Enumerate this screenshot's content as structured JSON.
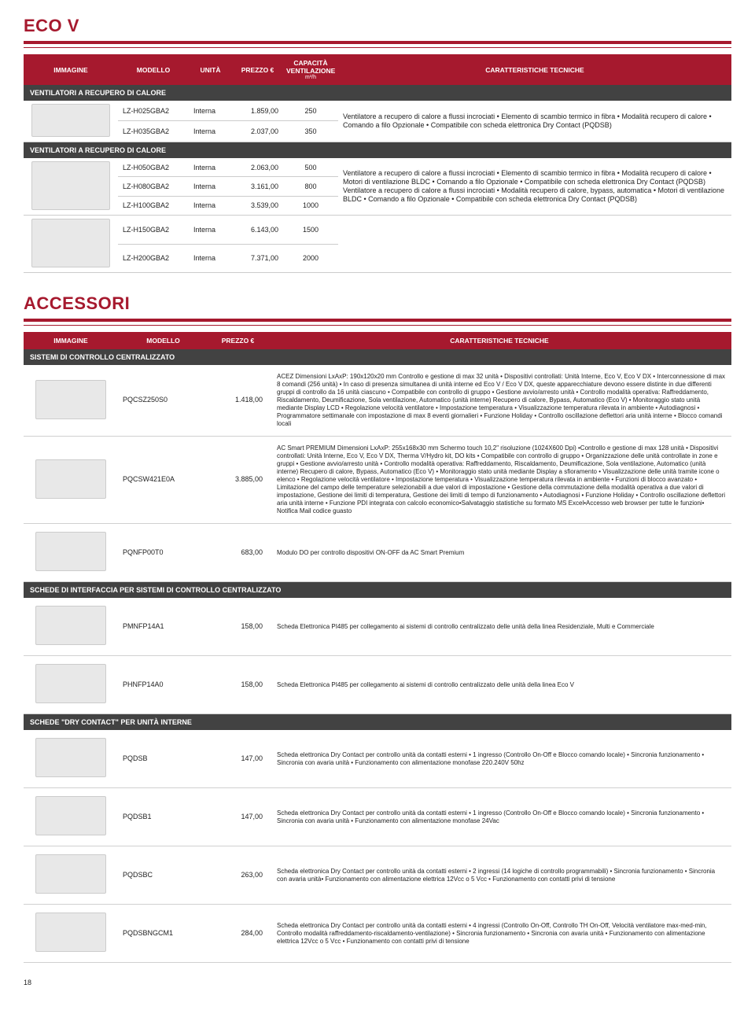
{
  "colors": {
    "brand": "#a6192e",
    "section_bg": "#424242",
    "border": "#cccccc",
    "text": "#222222"
  },
  "page_number": "18",
  "ecov": {
    "title": "ECO V",
    "headers": {
      "immagine": "IMMAGINE",
      "modello": "MODELLO",
      "unita": "UNITÀ",
      "prezzo": "PREZZO €",
      "capacita": "CAPACITÀ VENTILAZIONE",
      "capacita_sub": "m³/h",
      "caratteristiche": "CARATTERISTICHE TECNICHE"
    },
    "section1": {
      "label": "VENTILATORI A RECUPERO DI CALORE",
      "rows": [
        {
          "model": "LZ-H025GBA2",
          "unit": "Interna",
          "price": "1.859,00",
          "cap": "250"
        },
        {
          "model": "LZ-H035GBA2",
          "unit": "Interna",
          "price": "2.037,00",
          "cap": "350"
        }
      ],
      "desc": "Ventilatore a recupero di calore a flussi incrociati • Elemento di scambio termico in fibra • Modalità recupero di calore • Comando a filo Opzionale • Compatibile con scheda elettronica Dry Contact (PQDSB)"
    },
    "section2": {
      "label": "VENTILATORI A RECUPERO DI CALORE",
      "rows": [
        {
          "model": "LZ-H050GBA2",
          "unit": "Interna",
          "price": "2.063,00",
          "cap": "500"
        },
        {
          "model": "LZ-H080GBA2",
          "unit": "Interna",
          "price": "3.161,00",
          "cap": "800"
        },
        {
          "model": "LZ-H100GBA2",
          "unit": "Interna",
          "price": "3.539,00",
          "cap": "1000"
        },
        {
          "model": "LZ-H150GBA2",
          "unit": "Interna",
          "price": "6.143,00",
          "cap": "1500"
        },
        {
          "model": "LZ-H200GBA2",
          "unit": "Interna",
          "price": "7.371,00",
          "cap": "2000"
        }
      ],
      "desc": "Ventilatore a recupero di calore a flussi incrociati • Elemento di scambio termico in fibra • Modalità recupero di calore • Motori di ventilazione BLDC • Comando a filo Opzionale • Compatibile con scheda elettronica Dry Contact (PQDSB) Ventilatore a recupero di calore a flussi incrociati • Modalità recupero di calore, bypass, automatica • Motori di ventilazione BLDC • Comando a filo Opzionale • Compatibile con scheda elettronica Dry Contact (PQDSB)"
    }
  },
  "accessori": {
    "title": "ACCESSORI",
    "headers": {
      "immagine": "IMMAGINE",
      "modello": "MODELLO",
      "prezzo": "PREZZO €",
      "caratteristiche": "CARATTERISTICHE TECNICHE"
    },
    "sections": [
      {
        "label": "SISTEMI DI CONTROLLO CENTRALIZZATO",
        "rows": [
          {
            "model": "PQCSZ250S0",
            "price": "1.418,00",
            "desc": "ACEZ\nDimensioni LxAxP: 190x120x20 mm\nControllo e gestione di max 32 unità • Dispositivi controllati: Unità Interne, Eco V, Eco V DX • Interconnessione di max 8 comandi (256 unità) • In caso di presenza simultanea di unità interne ed Eco V / Eco V DX, queste apparecchiature devono essere distinte in due differenti gruppi di controllo da 16 unità ciascuno • Compatibile con controllo di gruppo • Gestione avvio/arresto unità • Controllo modalità operativa: Raffreddamento, Riscaldamento, Deumificazione, Sola ventilazione, Automatico (unità interne) Recupero di calore, Bypass, Automatico (Eco V) • Monitoraggio stato unità mediante Display LCD • Regolazione velocità ventilatore • Impostazione temperatura • Visualizzazione temperatura rilevata in ambiente • Autodiagnosi • Programmatore settimanale con impostazione di max 8 eventi giornalieri • Funzione Holiday • Controllo oscillazione deflettori aria unità interne • Blocco comandi locali"
          },
          {
            "model": "PQCSW421E0A",
            "price": "3.885,00",
            "desc": "AC Smart PREMIUM\nDimensioni LxAxP: 255x168x30 mm\nSchermo touch 10,2\" risoluzione (1024X600 Dpi) •Controllo e gestione di max 128 unità • Dispositivi controllati: Unità Interne, Eco V, Eco V DX, Therma V/Hydro kit, DO kits • Compatibile con controllo di gruppo • Organizzazione delle unità controllate in zone e gruppi • Gestione avvio/arresto unità • Controllo modalità operativa: Raffreddamento, Riscaldamento, Deumificazione, Sola ventilazione, Automatico (unità interne) Recupero di calore, Bypass, Automatico (Eco V) • Monitoraggio stato unità mediante Display a sfioramento • Visualizzazione delle unità tramite icone o elenco • Regolazione velocità ventilatore • Impostazione temperatura • Visualizzazione temperatura rilevata in ambiente • Funzioni di blocco avanzato • Limitazione del campo delle temperature selezionabili a due valori di impostazione • Gestione della commutazione della modalità operativa a due valori di impostazione, Gestione dei limiti di temperatura, Gestione dei limiti di tempo di funzionamento • Autodiagnosi • Funzione Holiday • Controllo oscillazione deflettori aria unità interne • Funzione PDI integrata con calcolo economico•Salvataggio statistiche su formato MS Excel•Accesso web browser per tutte le funzioni• Notifica Mail codice guasto"
          },
          {
            "model": "PQNFP00T0",
            "price": "683,00",
            "desc": "Modulo DO per controllo dispositivi ON-OFF da AC Smart Premium"
          }
        ]
      },
      {
        "label": "SCHEDE DI INTERFACCIA PER SISTEMI DI CONTROLLO CENTRALIZZATO",
        "rows": [
          {
            "model": "PMNFP14A1",
            "price": "158,00",
            "desc": "Scheda Elettronica PI485 per collegamento ai sistemi di controllo centralizzato delle unità della linea Residenziale, Multi e Commerciale"
          },
          {
            "model": "PHNFP14A0",
            "price": "158,00",
            "desc": "Scheda Elettronica PI485 per collegamento ai sistemi di controllo centralizzato delle unità della linea Eco V"
          }
        ]
      },
      {
        "label": "SCHEDE \"DRY CONTACT\" PER UNITÀ INTERNE",
        "rows": [
          {
            "model": "PQDSB",
            "price": "147,00",
            "desc": "Scheda elettronica Dry Contact per controllo unità da contatti esterni • 1 ingresso (Controllo On-Off e Blocco comando locale) • Sincronia funzionamento • Sincronia con avaria unità • Funzionamento con alimentazione monofase 220.240V 50hz"
          },
          {
            "model": "PQDSB1",
            "price": "147,00",
            "desc": "Scheda elettronica Dry Contact per controllo unità da contatti esterni • 1 ingresso (Controllo On-Off e Blocco comando locale) • Sincronia funzionamento • Sincronia con avaria unità • Funzionamento con alimentazione monofase 24Vac"
          },
          {
            "model": "PQDSBC",
            "price": "263,00",
            "desc": "Scheda elettronica Dry Contact per controllo unità da contatti esterni • 2 ingressi (14 logiche di controllo programmabili) • Sincronia funzionamento • Sincronia con avaria unità• Funzionamento con alimentazione elettrica 12Vcc o 5 Vcc • Funzionamento con contatti privi di tensione"
          },
          {
            "model": "PQDSBNGCM1",
            "price": "284,00",
            "desc": "Scheda elettronica Dry Contact per controllo unità da contatti esterni • 4 ingressi (Controllo On-Off, Controllo TH On-Off, Velocità ventilatore max-med-min, Controllo modalità raffreddamento-riscaldamento-ventilazione) • Sincronia funzionamento • Sincronia con avaria unità • Funzionamento con alimentazione elettrica 12Vcc o 5 Vcc • Funzionamento con contatti privi di tensione"
          }
        ]
      }
    ]
  }
}
